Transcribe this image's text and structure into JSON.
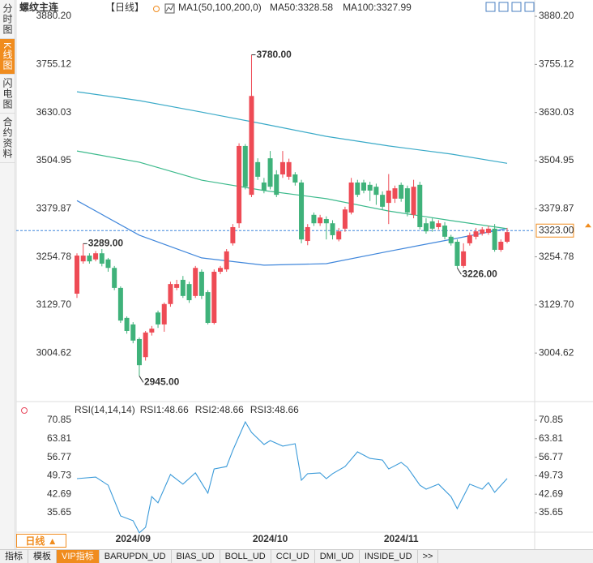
{
  "sidebar_tabs": [
    "分时图",
    "K线图",
    "闪电图",
    "合约资料"
  ],
  "header": {
    "symbol": "螺纹主连",
    "period": "【日线】",
    "ma_label": "MA1(50,100,200,0)"
  },
  "chart_data": [
    {
      "type": "candlestick",
      "open": [
        3159,
        3243,
        3258,
        3248,
        3264,
        3248,
        3226,
        3174,
        3096,
        3079,
        3041,
        2994,
        3058,
        3110,
        3079,
        3132,
        3174,
        3195,
        3184,
        3153,
        3216,
        3163,
        3083,
        3216,
        3222,
        3290,
        3342,
        3543,
        3416,
        3501,
        3448,
        3511,
        3469,
        3469,
        3463,
        3469,
        3448,
        3296,
        3364,
        3342,
        3353,
        3342,
        3300,
        3328,
        3370,
        3448,
        3448,
        3442,
        3437,
        3416,
        3395,
        3406,
        3442,
        3433,
        3364,
        3442,
        3342,
        3347,
        3332,
        3336,
        3307,
        3294,
        3231,
        3290,
        3307,
        3315,
        3317,
        3328,
        3273,
        3294
      ],
      "high": [
        3264,
        3289,
        3264,
        3270,
        3275,
        3252,
        3231,
        3178,
        3100,
        3085,
        3045,
        3062,
        3075,
        3115,
        3136,
        3190,
        3195,
        3205,
        3190,
        3231,
        3222,
        3168,
        3222,
        3231,
        3275,
        3340,
        3550,
        3548,
        3780,
        3511,
        3460,
        3530,
        3480,
        3530,
        3510,
        3475,
        3455,
        3340,
        3370,
        3364,
        3360,
        3350,
        3330,
        3385,
        3460,
        3455,
        3455,
        3450,
        3445,
        3425,
        3470,
        3440,
        3448,
        3440,
        3455,
        3450,
        3355,
        3355,
        3350,
        3345,
        3312,
        3300,
        3290,
        3318,
        3330,
        3332,
        3336,
        3340,
        3300,
        3330
      ],
      "low": [
        3148,
        3237,
        3237,
        3243,
        3230,
        3216,
        3168,
        3083,
        3055,
        3030,
        2945,
        2985,
        3050,
        3070,
        3060,
        3125,
        3168,
        3148,
        3135,
        3148,
        3145,
        3079,
        3079,
        3210,
        3216,
        3284,
        3330,
        3430,
        3410,
        3455,
        3420,
        3430,
        3410,
        3460,
        3455,
        3440,
        3290,
        3285,
        3335,
        3335,
        3300,
        3300,
        3295,
        3320,
        3365,
        3410,
        3420,
        3400,
        3390,
        3378,
        3340,
        3395,
        3398,
        3360,
        3355,
        3326,
        3315,
        3320,
        3326,
        3300,
        3284,
        3226,
        3226,
        3284,
        3300,
        3310,
        3312,
        3268,
        3268,
        3290
      ],
      "close": [
        3258,
        3258,
        3243,
        3264,
        3237,
        3226,
        3174,
        3089,
        3062,
        3037,
        2973,
        3058,
        3068,
        3079,
        3132,
        3184,
        3184,
        3153,
        3142,
        3226,
        3153,
        3083,
        3216,
        3226,
        3269,
        3332,
        3543,
        3437,
        3673,
        3463,
        3427,
        3437,
        3416,
        3501,
        3501,
        3448,
        3300,
        3332,
        3342,
        3357,
        3342,
        3311,
        3321,
        3378,
        3448,
        3416,
        3427,
        3427,
        3416,
        3385,
        3427,
        3433,
        3406,
        3370,
        3437,
        3332,
        3321,
        3328,
        3342,
        3307,
        3290,
        3231,
        3269,
        3311,
        3321,
        3326,
        3328,
        3273,
        3294,
        3319
      ],
      "up_color": "#ee4b55",
      "down_color": "#3fb27a",
      "ylim": [
        2889,
        3912
      ],
      "yticks": [
        {
          "value": 3880.2,
          "label": "3880.20"
        },
        3755.12,
        3630.03,
        3504.95,
        3379.87,
        3254.78,
        {
          "value": 3129.7,
          "label": "3129.70"
        },
        3004.62
      ],
      "ma_x": [
        0,
        10,
        20,
        30,
        40,
        50,
        60,
        69
      ],
      "series": [
        {
          "name": "MA50:3328.58",
          "color": "#3f86db",
          "values": [
            3401,
            3311,
            3252,
            3233,
            3237,
            3269,
            3300,
            3328.58
          ]
        },
        {
          "name": "MA100:3327.99",
          "color": "#3cba8c",
          "values": [
            3530,
            3501,
            3454,
            3427,
            3406,
            3374,
            3349,
            3327.99
          ]
        },
        {
          "color": "#3aaac8",
          "values": [
            3684,
            3661,
            3631,
            3600,
            3568,
            3543,
            3522,
            3498
          ]
        }
      ],
      "annotations": [
        {
          "label": "3780.00",
          "value": 3780,
          "index": 28,
          "color": "#e84a5f"
        },
        {
          "label": "3289.00",
          "value": 3289,
          "index": 1,
          "color": "#e84a5f"
        },
        {
          "label": "2945.00",
          "value": 2945,
          "index": 10,
          "color": "#3fb27a"
        },
        {
          "label": "3226.00",
          "value": 3226,
          "index": 61,
          "color": "#3fb27a"
        }
      ],
      "current_price": {
        "value": 3323,
        "label": "3323.00",
        "color": "#f08c1e",
        "line_color": "#3f86db"
      },
      "x_labels": [
        {
          "index": 9,
          "label": "2024/09"
        },
        {
          "index": 31,
          "label": "2024/10"
        },
        {
          "index": 52,
          "label": "2024/11"
        }
      ]
    },
    {
      "type": "line",
      "title": "RSI(14,14,14)",
      "ylim": [
        27,
        74.86
      ],
      "yticks": [
        70.85,
        63.81,
        56.77,
        49.73,
        42.69,
        35.65
      ],
      "series": [
        {
          "name": "RSI1:48.66",
          "color": "#3a9ad9",
          "x": [
            0,
            3,
            5,
            7,
            9,
            10,
            11,
            12,
            13,
            15,
            17,
            19,
            21,
            22,
            24,
            25,
            27,
            28,
            30,
            31,
            33,
            35,
            36,
            37,
            39,
            40,
            41,
            43,
            45,
            47,
            49,
            50,
            52,
            53,
            55,
            56,
            58,
            60,
            61,
            63,
            65,
            66,
            67,
            69
          ],
          "values": [
            48.6,
            49.2,
            46.1,
            34.4,
            32.6,
            28.0,
            30.1,
            41.8,
            39.4,
            50.2,
            46.5,
            50.8,
            43.1,
            52.3,
            53.2,
            59.4,
            70.2,
            66.2,
            61.6,
            63.1,
            61.0,
            61.9,
            48.0,
            50.5,
            50.8,
            48.6,
            50.5,
            53.2,
            58.8,
            56.3,
            55.7,
            52.3,
            54.8,
            52.9,
            46.1,
            44.6,
            46.5,
            41.8,
            37.2,
            46.5,
            44.6,
            47.1,
            43.4,
            48.66
          ]
        },
        {
          "name": "RSI2:48.66",
          "color": "#4cbf8c"
        },
        {
          "name": "RSI3:48.66",
          "color": "#3aa0d0"
        }
      ]
    }
  ],
  "footer": {
    "period_button": "日线 ▲",
    "tabs": [
      "指标",
      "模板",
      "VIP指标",
      "BARUPDN_UD",
      "BIAS_UD",
      "BOLL_UD",
      "CCI_UD",
      "DMI_UD",
      "INSIDE_UD",
      ">>"
    ]
  }
}
